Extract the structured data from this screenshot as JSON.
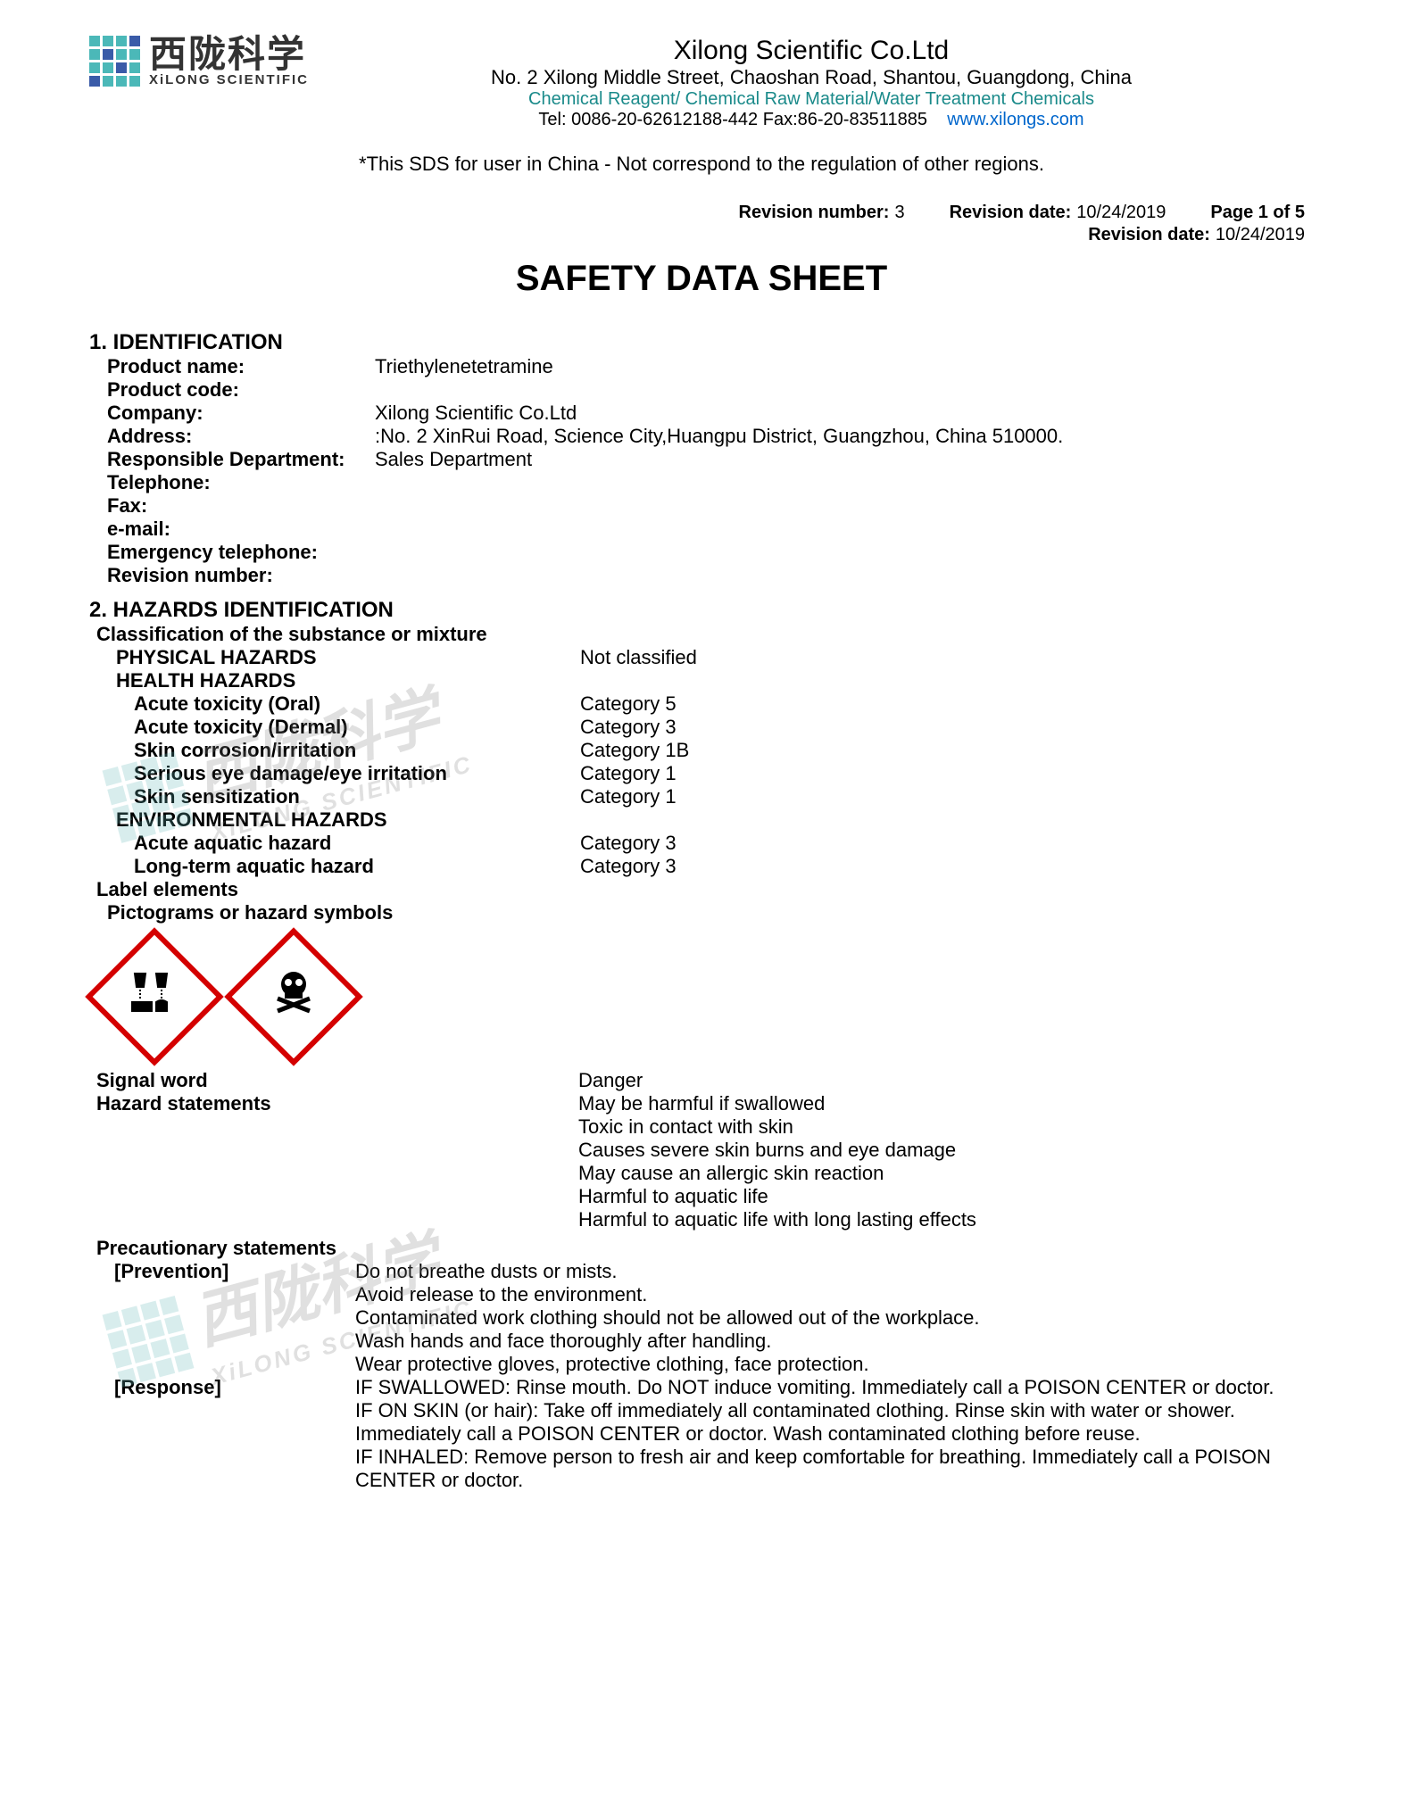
{
  "header": {
    "logo_colors": [
      "#4bb8b8",
      "#4bb8b8",
      "#4bb8b8",
      "#3a5ba8",
      "#4bb8b8",
      "#3a5ba8",
      "#4bb8b8",
      "#4bb8b8",
      "#4bb8b8",
      "#4bb8b8",
      "#3a5ba8",
      "#4bb8b8",
      "#3a5ba8",
      "#4bb8b8",
      "#4bb8b8",
      "#4bb8b8"
    ],
    "logo_cn": "西陇科学",
    "logo_en": "XiLONG SCIENTIFIC",
    "company_name": "Xilong Scientific Co.Ltd",
    "company_addr": "No. 2 Xilong Middle Street, Chaoshan Road, Shantou, Guangdong, China",
    "company_desc": "Chemical Reagent/ Chemical Raw Material/Water Treatment Chemicals",
    "company_tel": "Tel: 0086-20-62612188-442  Fax:86-20-83511885",
    "company_link": "www.xilongs.com"
  },
  "sds_note": "*This SDS for user in China - Not correspond to the regulation of other regions.",
  "revision": {
    "rev_num_label": "Revision number:",
    "rev_num": "3",
    "rev_date_label": "Revision date:",
    "rev_date": "10/24/2019",
    "page_label": "Page 1 of 5",
    "rev_date2_label": "Revision date:",
    "rev_date2": "10/24/2019"
  },
  "doc_title": "SAFETY DATA SHEET",
  "section1": {
    "title": "1. IDENTIFICATION",
    "rows": [
      {
        "label": "Product name:",
        "value": "Triethylenetetramine"
      },
      {
        "label": "Product code:",
        "value": ""
      },
      {
        "label": "Company:",
        "value": "Xilong Scientific Co.Ltd"
      },
      {
        "label": "Address:",
        "value": ":No. 2 XinRui Road, Science City,Huangpu District, Guangzhou, China 510000."
      },
      {
        "label": "Responsible Department:",
        "value": "Sales Department"
      },
      {
        "label": "Telephone:",
        "value": ""
      },
      {
        "label": "Fax:",
        "value": ""
      },
      {
        "label": "e-mail:",
        "value": ""
      },
      {
        "label": "Emergency telephone:",
        "value": ""
      },
      {
        "label": "Revision number:",
        "value": ""
      }
    ]
  },
  "section2": {
    "title": "2. HAZARDS IDENTIFICATION",
    "classification_title": "Classification of the substance or mixture",
    "physical_label": "PHYSICAL HAZARDS",
    "physical_value": "Not classified",
    "health_label": "HEALTH HAZARDS",
    "health_rows": [
      {
        "label": "Acute toxicity (Oral)",
        "value": "Category 5"
      },
      {
        "label": "Acute toxicity (Dermal)",
        "value": "Category 3"
      },
      {
        "label": "Skin corrosion/irritation",
        "value": "Category 1B"
      },
      {
        "label": "Serious eye damage/eye irritation",
        "value": "Category 1"
      },
      {
        "label": "Skin sensitization",
        "value": "Category 1"
      }
    ],
    "env_label": "ENVIRONMENTAL HAZARDS",
    "env_rows": [
      {
        "label": "Acute aquatic hazard",
        "value": "Category 3"
      },
      {
        "label": "Long-term aquatic hazard",
        "value": "Category 3"
      }
    ],
    "label_elements": "Label elements",
    "pictograms_title": "Pictograms or hazard symbols",
    "signal_label": "Signal word",
    "signal_value": "Danger",
    "hazard_stmt_label": "Hazard statements",
    "hazard_statements": [
      "May be harmful if swallowed",
      "Toxic in contact with skin",
      "Causes severe skin burns and eye damage",
      "May cause an allergic skin reaction",
      "Harmful to aquatic life",
      "Harmful to aquatic life with long lasting effects"
    ],
    "precaution_title": "Precautionary statements",
    "prevention_label": "[Prevention]",
    "prevention": [
      "Do not breathe dusts or mists.",
      "Avoid release to the environment.",
      "Contaminated work clothing should not be allowed out of the workplace.",
      "Wash hands and face thoroughly after handling.",
      "Wear protective gloves, protective clothing, face protection."
    ],
    "response_label": "[Response]",
    "response": [
      "IF SWALLOWED: Rinse mouth. Do NOT induce vomiting. Immediately call a POISON CENTER or doctor.",
      "IF ON SKIN (or hair): Take off immediately all contaminated clothing. Rinse skin with water or shower. Immediately call a POISON CENTER or doctor. Wash contaminated clothing before reuse.",
      "IF INHALED: Remove person to fresh air and keep comfortable for breathing. Immediately call a POISON CENTER or doctor."
    ]
  },
  "watermark": {
    "cn": "西陇科学",
    "en": "XiLONG SCIENTIFIC"
  }
}
